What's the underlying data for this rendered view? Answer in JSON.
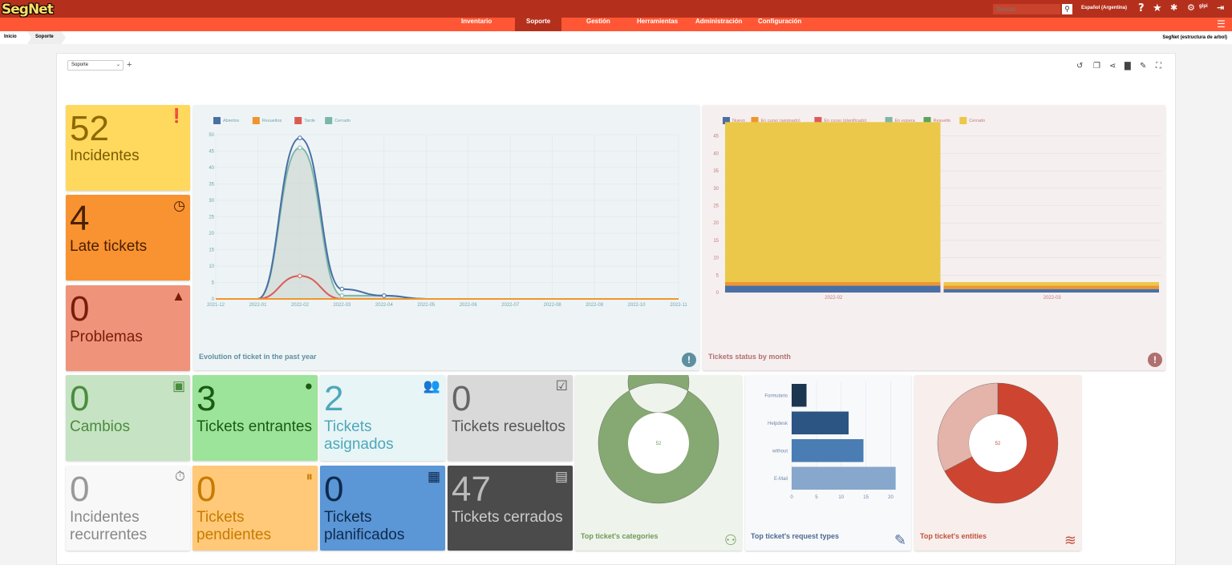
{
  "app": {
    "logo": "SegNet",
    "search_placeholder": "Buscar",
    "language": "Español (Argentina)",
    "username": "glpi"
  },
  "menu": [
    "Inventario",
    "Soporte",
    "Gestión",
    "Herramientas",
    "Administración",
    "Configuración"
  ],
  "breadcrumb": [
    "Inicio",
    "Soporte"
  ],
  "entity": "SegNet (estructura de arbol)",
  "dashboard": {
    "selected": "Soporte"
  },
  "cards": {
    "incidents": {
      "value": "52",
      "label": "Incidentes"
    },
    "late": {
      "value": "4",
      "label": "Late tickets"
    },
    "problems": {
      "value": "0",
      "label": "Problemas"
    },
    "changes": {
      "value": "0",
      "label": "Cambios"
    },
    "incoming": {
      "value": "3",
      "label": "Tickets entrantes"
    },
    "assigned": {
      "value": "2",
      "label": "Tickets asignados"
    },
    "solved": {
      "value": "0",
      "label": "Tickets resueltos"
    },
    "recurrent": {
      "value": "0",
      "label": "Incidentes recurrentes"
    },
    "pending": {
      "value": "0",
      "label": "Tickets pendientes"
    },
    "planned": {
      "value": "0",
      "label": "Tickets planificados"
    },
    "closed": {
      "value": "47",
      "label": "Tickets cerrados"
    }
  },
  "panels": {
    "evolution": "Evolution of ticket in the past year",
    "status": "Tickets status by month",
    "categories": "Top ticket's categories",
    "request_types": "Top ticket's request types",
    "entities": "Top ticket's entities"
  },
  "chart_data": [
    {
      "type": "area",
      "title": "Evolution of ticket in the past year",
      "x": [
        "2021-12",
        "2022-01",
        "2022-02",
        "2022-03",
        "2022-04",
        "2022-05",
        "2022-06",
        "2022-07",
        "2022-08",
        "2022-09",
        "2022-10",
        "2022-11"
      ],
      "ylim": [
        0,
        50
      ],
      "yticks": [
        0,
        5,
        10,
        15,
        20,
        25,
        30,
        35,
        40,
        45,
        50
      ],
      "series": [
        {
          "name": "Abiertos",
          "color": "#4a6fa5",
          "values": [
            0,
            0,
            49,
            3,
            1,
            0,
            0,
            0,
            0,
            0,
            0,
            0
          ]
        },
        {
          "name": "Resueltos",
          "color": "#f0952e",
          "values": [
            0,
            0,
            0,
            0,
            0,
            0,
            0,
            0,
            0,
            0,
            0,
            0
          ]
        },
        {
          "name": "Tarde",
          "color": "#dc5a55",
          "values": [
            0,
            0,
            7,
            0,
            0,
            0,
            0,
            0,
            0,
            0,
            0,
            0
          ]
        },
        {
          "name": "Cerrado",
          "color": "#7bb7a9",
          "values": [
            0,
            0,
            46,
            1,
            1,
            0,
            0,
            0,
            0,
            0,
            0,
            0
          ]
        }
      ]
    },
    {
      "type": "bar",
      "stacked": true,
      "title": "Tickets status by month",
      "categories": [
        "2022-02",
        "2022-03"
      ],
      "ylim": [
        0,
        47
      ],
      "yticks": [
        0,
        5,
        10,
        15,
        20,
        25,
        30,
        35,
        40,
        45
      ],
      "series": [
        {
          "name": "Nuevo",
          "color": "#4a6fa5",
          "values": [
            2,
            1
          ]
        },
        {
          "name": "En curso (asignado)",
          "color": "#f0952e",
          "values": [
            1,
            1
          ]
        },
        {
          "name": "En curso (planificado)",
          "color": "#e05a5a",
          "values": [
            0,
            0
          ]
        },
        {
          "name": "En espera",
          "color": "#7bb7a9",
          "values": [
            0,
            0
          ]
        },
        {
          "name": "Resuelto",
          "color": "#5ba35b",
          "values": [
            0,
            0
          ]
        },
        {
          "name": "Cerrado",
          "color": "#ebc84a",
          "values": [
            46,
            1
          ]
        }
      ]
    },
    {
      "type": "pie",
      "title": "Top ticket's categories",
      "total_label": "52",
      "values": [
        52
      ],
      "colors": [
        "#86a872"
      ]
    },
    {
      "type": "bar",
      "orientation": "horizontal",
      "title": "Top ticket's request types",
      "categories": [
        "Formulario",
        "Helpdesk",
        "without",
        "E-Mail"
      ],
      "values": [
        3,
        11.5,
        14.5,
        21
      ],
      "colors": [
        "#1c3550",
        "#2d5583",
        "#4a7db3",
        "#87a7cc"
      ],
      "xticks": [
        0,
        5,
        10,
        15,
        20
      ],
      "xlim": [
        0,
        23
      ]
    },
    {
      "type": "pie",
      "title": "Top ticket's entities",
      "total_label": "52",
      "values": [
        35,
        17
      ],
      "colors": [
        "#cd4531",
        "#e4b3a9"
      ]
    }
  ]
}
